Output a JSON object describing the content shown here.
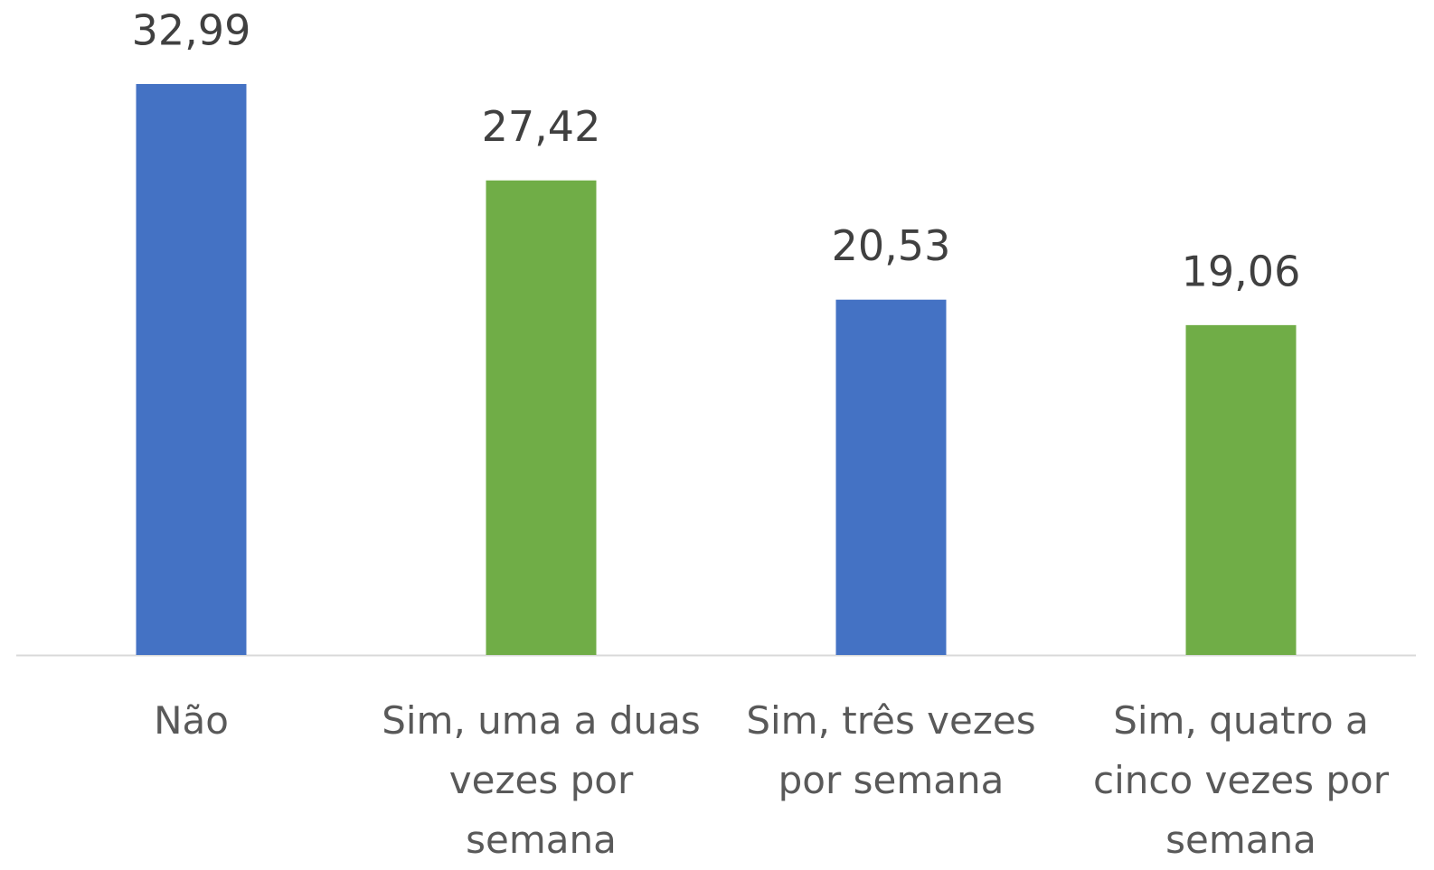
{
  "chart_data": {
    "type": "bar",
    "categories": [
      "Não",
      "Sim, uma a duas vezes por semana",
      "Sim, três vezes por semana",
      "Sim, quatro a cinco vezes por semana"
    ],
    "values": [
      32.99,
      27.42,
      20.53,
      19.06
    ],
    "value_labels": [
      "32,99",
      "27,42",
      "20,53",
      "19,06"
    ],
    "colors": [
      "#4472c4",
      "#70ad47",
      "#4472c4",
      "#70ad47"
    ],
    "grid": false
  }
}
